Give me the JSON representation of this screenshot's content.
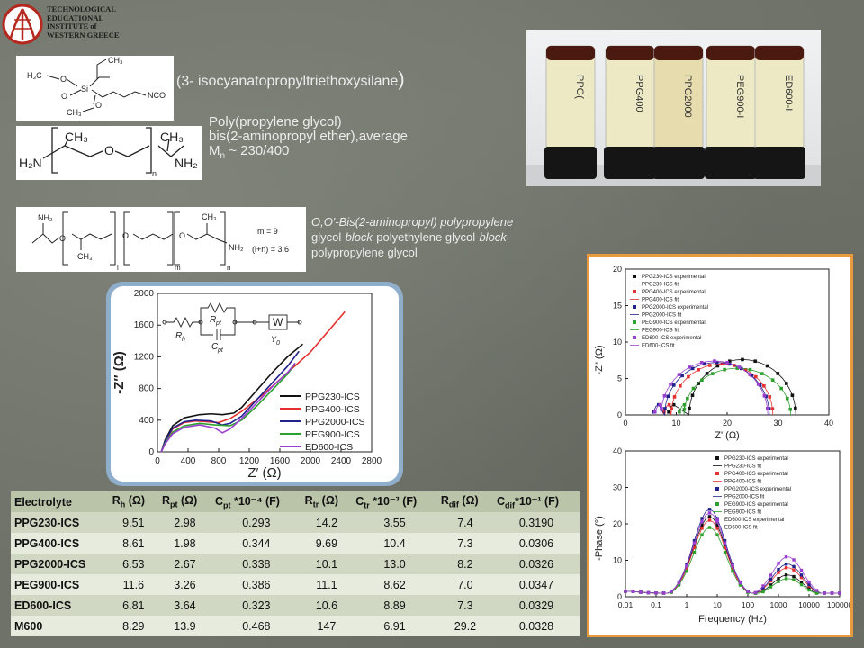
{
  "logo": {
    "lines": [
      "TECHNOLOGICAL",
      "EDUCATIONAL",
      "INSTITUTE of",
      "WESTERN GREECE"
    ]
  },
  "chem1": {
    "name": "(3- isocyanatopropyltriethoxysilane",
    "close": ")",
    "atoms": [
      "H₃C",
      "O",
      "Si",
      "O",
      "NCO",
      "CH₃",
      "O",
      "CH₃"
    ]
  },
  "chem2": {
    "line1": "Poly(propylene glycol)",
    "line2": "bis(2-aminopropyl ether),average",
    "mn_label": "M",
    "mn_sub": "n",
    "mn_value": " ~ 230/400",
    "atoms": [
      "H₂N",
      "CH₃",
      "O",
      "CH₃",
      "NH₂",
      "n"
    ]
  },
  "chem3": {
    "line1": "O,O′-Bis(2-aminopropyl) polypropylene",
    "line2a": "glycol-",
    "line2b": "block",
    "line2c": "-polyethylene glycol-",
    "line2d": "block",
    "line2e": "-",
    "line3": "polypropylene glycol",
    "atoms": [
      "NH₂",
      "CH₃",
      "O",
      "O",
      "CH₃",
      "O",
      "NH₂",
      "CH₃",
      "m",
      "n",
      "l"
    ],
    "m_eq": "m = 9",
    "ln_eq": "(l+n) = 3.6"
  },
  "photo": {
    "vial_labels": [
      "PPG(",
      "PPG400",
      "PPG2000",
      "PEG900-I",
      "ED600-I"
    ]
  },
  "nyquist_main": {
    "xlabel": "Z′ (Ω)",
    "ylabel": "-Z″ (Ω)",
    "circuit_labels": [
      "R",
      "h",
      "R",
      "pt",
      "C",
      "pt",
      "W",
      "Y",
      "0"
    ],
    "legend": [
      "PPG230-ICS",
      "PPG400-ICS",
      "PPG2000-ICS",
      "PEG900-ICS",
      "ED600-ICS"
    ],
    "colors": [
      "#111111",
      "#e53030",
      "#22228c",
      "#2ea02e",
      "#9a40d0"
    ]
  },
  "table": {
    "headers": [
      {
        "main": "Electrolyte",
        "sub": "",
        "tail": ""
      },
      {
        "main": "R",
        "sub": "h",
        "tail": " (Ω)"
      },
      {
        "main": "R",
        "sub": "pt",
        "tail": " (Ω)"
      },
      {
        "main": "C",
        "sub": "pt",
        "tail": " *10⁻⁴ (F)"
      },
      {
        "main": "R",
        "sub": "tr",
        "tail": " (Ω)"
      },
      {
        "main": "C",
        "sub": "tr",
        "tail": " *10⁻³ (F)"
      },
      {
        "main": "R",
        "sub": "dif",
        "tail": " (Ω)"
      },
      {
        "main": "C",
        "sub": "dif",
        "tail": "*10⁻¹ (F)"
      }
    ],
    "rows": [
      [
        "PPG230-ICS",
        "9.51",
        "2.98",
        "0.293",
        "14.2",
        "3.55",
        "7.4",
        "0.3190"
      ],
      [
        "PPG400-ICS",
        "8.61",
        "1.98",
        "0.344",
        "9.69",
        "10.4",
        "7.3",
        "0.0306"
      ],
      [
        "PPG2000-ICS",
        "6.53",
        "2.67",
        "0.338",
        "10.1",
        "13.0",
        "8.2",
        "0.0326"
      ],
      [
        "PEG900-ICS",
        "11.6",
        "3.26",
        "0.386",
        "11.1",
        "8.62",
        "7.0",
        "0.0347"
      ],
      [
        "ED600-ICS",
        "6.81",
        "3.64",
        "0.323",
        "10.6",
        "8.89",
        "7.3",
        "0.0329"
      ],
      [
        "M600",
        "8.29",
        "13.9",
        "0.468",
        "147",
        "6.91",
        "29.2",
        "0.0328"
      ]
    ]
  },
  "chart_data": [
    {
      "type": "line",
      "xlabel": "Z′ (Ω)",
      "ylabel": "-Z″ (Ω)",
      "xlim": [
        0,
        2800
      ],
      "ylim": [
        0,
        2000
      ],
      "xticks": [
        0,
        400,
        800,
        1200,
        1600,
        2000,
        2400,
        2800
      ],
      "yticks": [
        0,
        400,
        800,
        1200,
        1600,
        2000
      ],
      "legend_position": "right",
      "series": [
        {
          "name": "PPG230-ICS",
          "x": [
            50,
            100,
            200,
            350,
            550,
            700,
            850,
            1000,
            1100,
            1300,
            1500,
            1700,
            1900
          ],
          "y": [
            0,
            150,
            330,
            430,
            470,
            480,
            470,
            490,
            560,
            780,
            1000,
            1200,
            1360
          ]
        },
        {
          "name": "PPG400-ICS",
          "x": [
            50,
            100,
            200,
            350,
            500,
            650,
            800,
            950,
            1100,
            1400,
            1700,
            2000,
            2450
          ],
          "y": [
            0,
            130,
            290,
            370,
            390,
            380,
            370,
            420,
            510,
            740,
            1000,
            1260,
            1770
          ]
        },
        {
          "name": "PPG2000-ICS",
          "x": [
            50,
            100,
            200,
            350,
            500,
            700,
            850,
            950,
            1100,
            1300,
            1500,
            1700,
            1850
          ],
          "y": [
            0,
            140,
            300,
            380,
            400,
            390,
            340,
            360,
            450,
            660,
            870,
            1080,
            1270
          ]
        },
        {
          "name": "PEG900-ICS",
          "x": [
            50,
            100,
            200,
            350,
            550,
            750,
            950,
            1100,
            1300,
            1500,
            1700,
            1800
          ],
          "y": [
            0,
            110,
            250,
            330,
            360,
            340,
            330,
            400,
            580,
            780,
            980,
            1120
          ]
        },
        {
          "name": "ED600-ICS",
          "x": [
            50,
            100,
            200,
            350,
            550,
            750,
            850,
            950,
            1100,
            1300,
            1500,
            1700,
            1800
          ],
          "y": [
            0,
            100,
            230,
            310,
            340,
            300,
            240,
            290,
            420,
            620,
            820,
            1000,
            1120
          ]
        }
      ]
    },
    {
      "type": "scatter",
      "xlabel": "Z' (Ω)",
      "ylabel": "-Z'' (Ω)",
      "xlim": [
        0,
        40
      ],
      "ylim": [
        0,
        20
      ],
      "xticks": [
        0,
        10,
        20,
        30,
        40
      ],
      "yticks": [
        0,
        5,
        10,
        15,
        20
      ],
      "legend_position": "top-left",
      "legend": [
        "PPG230-ICS experimental",
        "PPG230-ICS fit",
        "PPG400-ICS experimental",
        "PPG400-ICS fit",
        "PPG2000-ICS experimental",
        "PPG2000-ICS fit",
        "PEG900-ICS experimental",
        "PEG900-ICS fit",
        "ED600-ICS experimental",
        "ED600-ICS fit"
      ],
      "series": [
        {
          "name": "PPG230-ICS experimental",
          "center": 23,
          "radius": 10.5,
          "start": 9.5,
          "height": 7.6
        },
        {
          "name": "PPG400-ICS experimental",
          "center": 19,
          "radius": 10,
          "start": 8.6,
          "height": 7.0
        },
        {
          "name": "PPG2000-ICS experimental",
          "center": 18,
          "radius": 10.3,
          "start": 6.5,
          "height": 7.2
        },
        {
          "name": "PEG900-ICS experimental",
          "center": 22,
          "radius": 10.5,
          "start": 11.6,
          "height": 6.4
        },
        {
          "name": "ED600-ICS experimental",
          "center": 17.5,
          "radius": 10.5,
          "start": 6.8,
          "height": 7.4
        }
      ]
    },
    {
      "type": "scatter",
      "xlabel": "Frequency (Hz)",
      "ylabel": "-Phase (°)",
      "xscale": "log",
      "xlim": [
        0.01,
        100000
      ],
      "ylim": [
        0,
        40
      ],
      "xticks": [
        "0.01",
        "0.1",
        "1",
        "10",
        "100",
        "1000",
        "10000",
        "100000"
      ],
      "yticks": [
        0,
        10,
        20,
        30,
        40
      ],
      "legend_position": "top-right",
      "legend": [
        "PPG230-ICS experimental",
        "PPG230-ICS fit",
        "PPG400-ICS experimental",
        "PPG400-ICS fit",
        "PPG2000-ICS experimental",
        "PPG2000-ICS fit",
        "PEG900-ICS experimental",
        "PEG900-ICS fit",
        "ED600-ICS experimental",
        "ED600-ICS fit"
      ],
      "series": [
        {
          "name": "PPG230-ICS",
          "peak1": 22,
          "peak2": 6
        },
        {
          "name": "PPG400-ICS",
          "peak1": 21,
          "peak2": 8
        },
        {
          "name": "PPG2000-ICS",
          "peak1": 24,
          "peak2": 9
        },
        {
          "name": "PEG900-ICS",
          "peak1": 19,
          "peak2": 5
        },
        {
          "name": "ED600-ICS",
          "peak1": 23,
          "peak2": 11
        }
      ]
    }
  ],
  "colors": {
    "black": "#111111",
    "red": "#e53030",
    "blue": "#22228c",
    "green": "#2ea02e",
    "purple": "#9a40d0",
    "frame_orange": "#e89a3c",
    "frame_blue": "#8faecc"
  }
}
